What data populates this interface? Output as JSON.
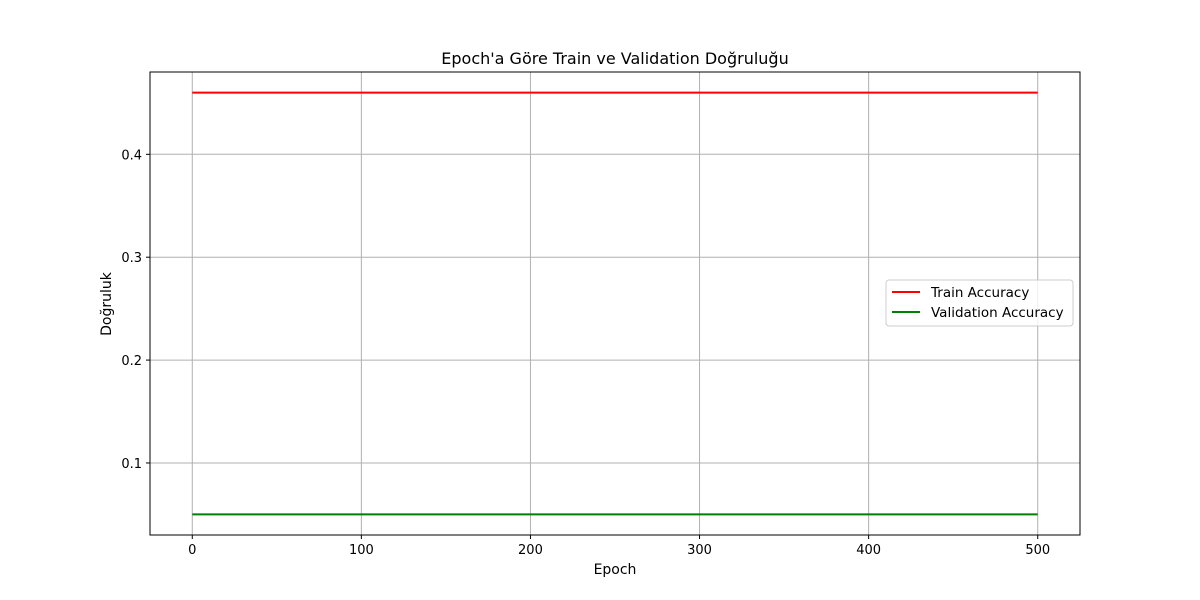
{
  "chart_data": {
    "type": "line",
    "title": "Epoch'a Göre Train ve Validation Doğruluğu",
    "xlabel": "Epoch",
    "ylabel": "Doğruluk",
    "xlim": [
      -25,
      525
    ],
    "ylim": [
      0.03,
      0.48
    ],
    "xticks": [
      0,
      100,
      200,
      300,
      400,
      500
    ],
    "yticks": [
      0.1,
      0.2,
      0.3,
      0.4
    ],
    "ytick_labels": [
      "0.1",
      "0.2",
      "0.3",
      "0.4"
    ],
    "grid": true,
    "legend_position": "center-right",
    "series": [
      {
        "name": "Train Accuracy",
        "color": "#ff0000",
        "x": [
          0,
          500
        ],
        "y": [
          0.46,
          0.46
        ]
      },
      {
        "name": "Validation Accuracy",
        "color": "#008000",
        "x": [
          0,
          500
        ],
        "y": [
          0.05,
          0.05
        ]
      }
    ]
  }
}
